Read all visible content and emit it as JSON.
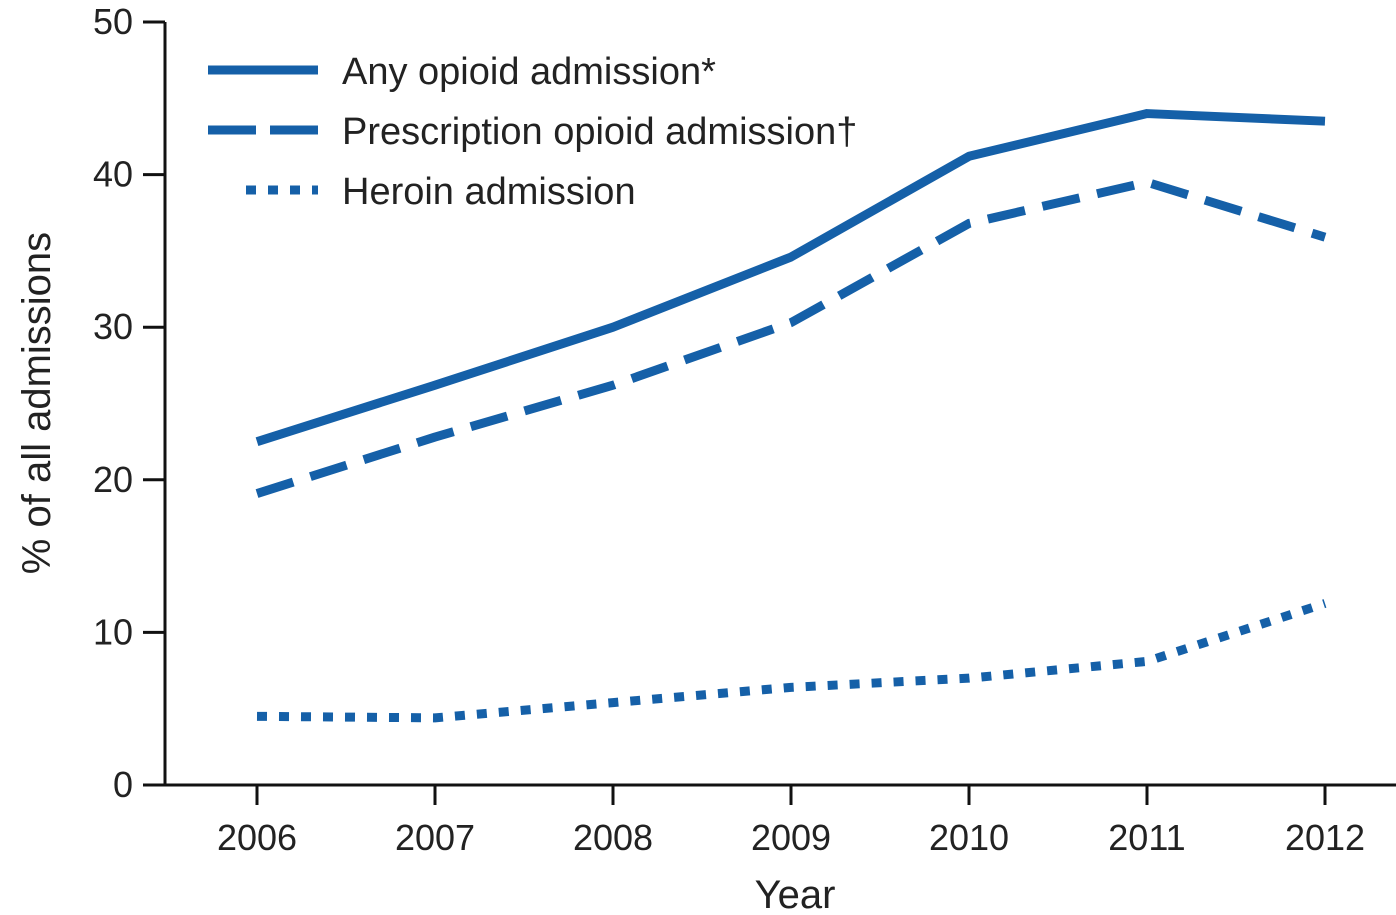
{
  "chart_data": {
    "type": "line",
    "title": "",
    "xlabel": "Year",
    "ylabel": "% of all admissions",
    "x": [
      "2006",
      "2007",
      "2008",
      "2009",
      "2010",
      "2011",
      "2012"
    ],
    "ylim": [
      0,
      50
    ],
    "yticks": [
      0,
      10,
      20,
      30,
      40,
      50
    ],
    "grid": false,
    "legend_position": "top-left",
    "colors": {
      "series": "#1560a8",
      "axis": "#111111",
      "text": "#222222"
    },
    "series": [
      {
        "name": "Any opioid admission*",
        "style": "solid",
        "values": [
          22.5,
          26.2,
          30.0,
          34.6,
          41.2,
          44.0,
          43.5
        ]
      },
      {
        "name": "Prescription opioid admission†",
        "style": "dashed",
        "values": [
          19.1,
          22.8,
          26.2,
          30.3,
          36.8,
          39.5,
          35.9
        ]
      },
      {
        "name": "Heroin admission",
        "style": "dotted",
        "values": [
          4.5,
          4.4,
          5.4,
          6.4,
          7.0,
          8.1,
          11.9
        ]
      }
    ]
  }
}
